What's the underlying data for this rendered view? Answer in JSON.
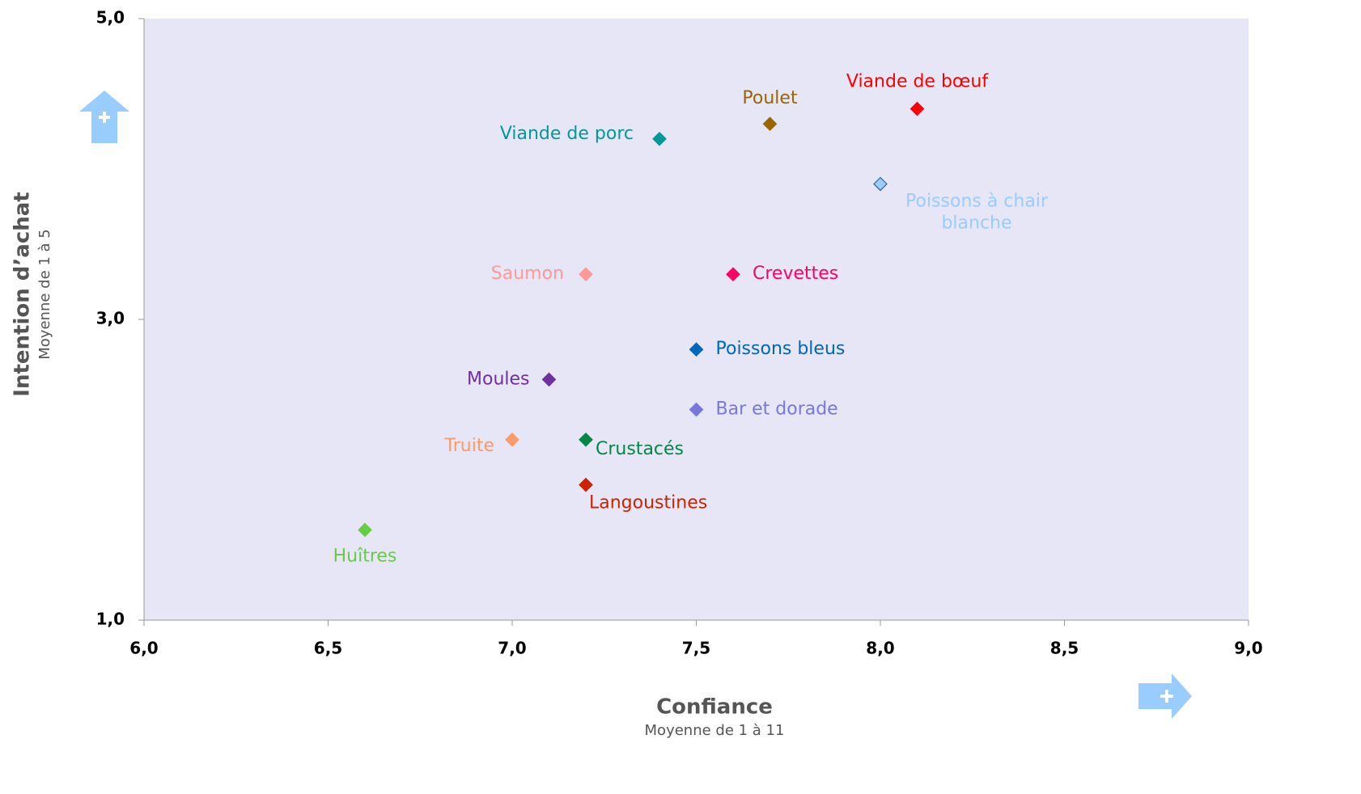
{
  "chart_data": {
    "type": "scatter",
    "x_label": "Confiance",
    "x_sublabel": "Moyenne de 1 à 11",
    "y_label": "Intention d’achat",
    "y_sublabel": "Moyenne de 1 à 5",
    "xlim": [
      6,
      9
    ],
    "ylim": [
      1,
      5
    ],
    "xticks": [
      {
        "value": 6,
        "label": "6,0"
      },
      {
        "value": 6.5,
        "label": "6,5"
      },
      {
        "value": 7,
        "label": "7,0"
      },
      {
        "value": 7.5,
        "label": "7,5"
      },
      {
        "value": 8,
        "label": "8,0"
      },
      {
        "value": 8.5,
        "label": "8,5"
      },
      {
        "value": 9,
        "label": "9,0"
      }
    ],
    "yticks": [
      {
        "value": 1,
        "label": "1,0"
      },
      {
        "value": 3,
        "label": "3,0"
      },
      {
        "value": 5,
        "label": "5,0"
      }
    ],
    "series": [
      {
        "name": "Viande de bœuf",
        "color": "#ff0000",
        "x": [
          8.1
        ],
        "values": [
          4.4
        ]
      },
      {
        "name": "Poulet",
        "color": "#996600",
        "x": [
          7.7
        ],
        "values": [
          4.3
        ]
      },
      {
        "name": "Viande de porc",
        "color": "#009999",
        "x": [
          7.4
        ],
        "values": [
          4.2
        ]
      },
      {
        "name": "Poissons à chair blanche",
        "color": "#99ccff",
        "x": [
          8.0
        ],
        "values": [
          3.9
        ]
      },
      {
        "name": "Saumon",
        "color": "#ff9999",
        "x": [
          7.2
        ],
        "values": [
          3.3
        ]
      },
      {
        "name": "Crevettes",
        "color": "#ff0066",
        "x": [
          7.6
        ],
        "values": [
          3.3
        ]
      },
      {
        "name": "Poissons bleus",
        "color": "#0066bb",
        "x": [
          7.5
        ],
        "values": [
          2.8
        ]
      },
      {
        "name": "Moules",
        "color": "#7030a0",
        "x": [
          7.1
        ],
        "values": [
          2.6
        ]
      },
      {
        "name": "Bar et dorade",
        "color": "#7777dd",
        "x": [
          7.5
        ],
        "values": [
          2.4
        ]
      },
      {
        "name": "Truite",
        "color": "#ff9966",
        "x": [
          7.0
        ],
        "values": [
          2.2
        ]
      },
      {
        "name": "Crustacés",
        "color": "#008844",
        "x": [
          7.2
        ],
        "values": [
          2.2
        ]
      },
      {
        "name": "Langoustines",
        "color": "#cc2200",
        "x": [
          7.2
        ],
        "values": [
          1.9
        ]
      },
      {
        "name": "Huîtres",
        "color": "#66cc44",
        "x": [
          6.6
        ],
        "values": [
          1.6
        ]
      }
    ]
  }
}
